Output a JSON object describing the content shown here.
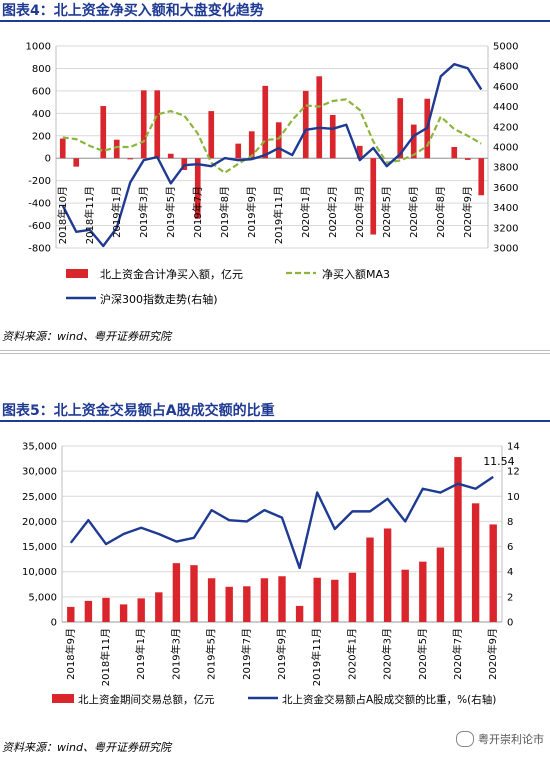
{
  "chart1": {
    "title": "图表4：北上资金净买入额和大盘变化趋势",
    "source": "资料来源：wind、粤开证券研究院",
    "left_ticks": [
      -800,
      -600,
      -400,
      -200,
      0,
      200,
      400,
      600,
      800,
      1000
    ],
    "right_ticks": [
      3000,
      3200,
      3400,
      3600,
      3800,
      4000,
      4200,
      4400,
      4600,
      4800,
      5000
    ],
    "legend": {
      "bar": "北上资金合计净买入额，亿元",
      "ma3": "净买入额MA3",
      "index": "沪深300指数走势(右轴)"
    }
  },
  "chart2": {
    "title": "图表5：北上资金交易额占A股成交额的比重",
    "source": "资料来源：wind、粤开证券研究院",
    "left_ticks": [
      "0",
      "5,000",
      "10,000",
      "15,000",
      "20,000",
      "25,000",
      "30,000",
      "35,000"
    ],
    "right_ticks": [
      0,
      2,
      4,
      6,
      8,
      10,
      12,
      14
    ],
    "annotation": "11.54",
    "legend": {
      "bar": "北上资金期间交易总额，亿元",
      "line": "北上资金交易额占A股成交额的比重，%(右轴)"
    }
  },
  "watermark": "粤开崇利论市",
  "colors": {
    "title": "#1f3a93",
    "bar": "#d9262c",
    "line": "#1f3a93",
    "ma3": "#8db53e"
  },
  "chart_data": [
    {
      "type": "bar",
      "categories": [
        "2018年10月",
        "",
        "2018年11月",
        "",
        "2019年1月",
        "",
        "2019年3月",
        "",
        "2019年5月",
        "",
        "2019年7月",
        "",
        "2019年8月",
        "",
        "2019年9月",
        "",
        "2019年11月",
        "",
        "2020年1月",
        "",
        "2020年2月",
        "",
        "2020年3月",
        "",
        "2020年5月",
        "",
        "2020年6月",
        "",
        "2020年8月",
        "",
        "2020年9月",
        ""
      ],
      "series": [
        {
          "name": "北上资金合计净买入额，亿元",
          "axis": "left",
          "type": "bar",
          "values": [
            175,
            -75,
            0,
            465,
            165,
            -10,
            605,
            605,
            40,
            -105,
            -540,
            420,
            0,
            130,
            240,
            645,
            320,
            0,
            600,
            730,
            385,
            0,
            110,
            -680,
            0,
            535,
            300,
            530,
            0,
            100,
            -15,
            -330
          ]
        },
        {
          "name": "净买入额MA3",
          "axis": "left",
          "type": "line",
          "values": [
            185,
            170,
            110,
            65,
            100,
            100,
            150,
            390,
            420,
            380,
            220,
            -40,
            -130,
            -50,
            20,
            160,
            175,
            340,
            470,
            460,
            510,
            525,
            430,
            150,
            -40,
            -20,
            30,
            110,
            370,
            260,
            200,
            130
          ]
        },
        {
          "name": "沪深300指数走势(右轴)",
          "axis": "right",
          "type": "line",
          "values": [
            3420,
            3160,
            3180,
            3020,
            3200,
            3650,
            3870,
            3900,
            3640,
            3820,
            3830,
            3810,
            3890,
            3870,
            3880,
            3920,
            3990,
            3920,
            4170,
            4190,
            4180,
            4220,
            3870,
            3990,
            3810,
            3930,
            4110,
            4190,
            4700,
            4820,
            4780,
            4570
          ]
        }
      ],
      "ylim": [
        -800,
        1000
      ],
      "ylim_right": [
        3000,
        5000
      ],
      "legend_position": "bottom"
    },
    {
      "type": "bar",
      "categories": [
        "2018年9月",
        "",
        "2018年11月",
        "",
        "2019年1月",
        "",
        "2019年3月",
        "",
        "2019年5月",
        "",
        "2019年7月",
        "",
        "2019年9月",
        "",
        "2019年11月",
        "",
        "2020年1月",
        "",
        "2020年3月",
        "",
        "2020年5月",
        "",
        "2020年7月",
        "",
        "2020年9月"
      ],
      "series": [
        {
          "name": "北上资金期间交易总额，亿元",
          "axis": "left",
          "type": "bar",
          "values": [
            3000,
            4200,
            4800,
            3500,
            4700,
            5900,
            11700,
            11300,
            8700,
            7000,
            7100,
            8700,
            9100,
            3200,
            8800,
            8400,
            9800,
            16800,
            18600,
            10400,
            12000,
            14800,
            32800,
            23600,
            19400
          ]
        },
        {
          "name": "北上资金交易额占A股成交额的比重，%(右轴)",
          "axis": "right",
          "type": "line",
          "values": [
            6.3,
            8.1,
            6.2,
            7.0,
            7.5,
            7.0,
            6.4,
            6.7,
            8.9,
            8.1,
            8.0,
            8.9,
            8.3,
            4.3,
            10.3,
            7.4,
            8.8,
            8.8,
            9.8,
            8.0,
            10.6,
            10.3,
            11.0,
            10.6,
            11.54
          ]
        }
      ],
      "ylim": [
        0,
        35000
      ],
      "ylim_right": [
        0,
        14
      ],
      "legend_position": "bottom"
    }
  ]
}
